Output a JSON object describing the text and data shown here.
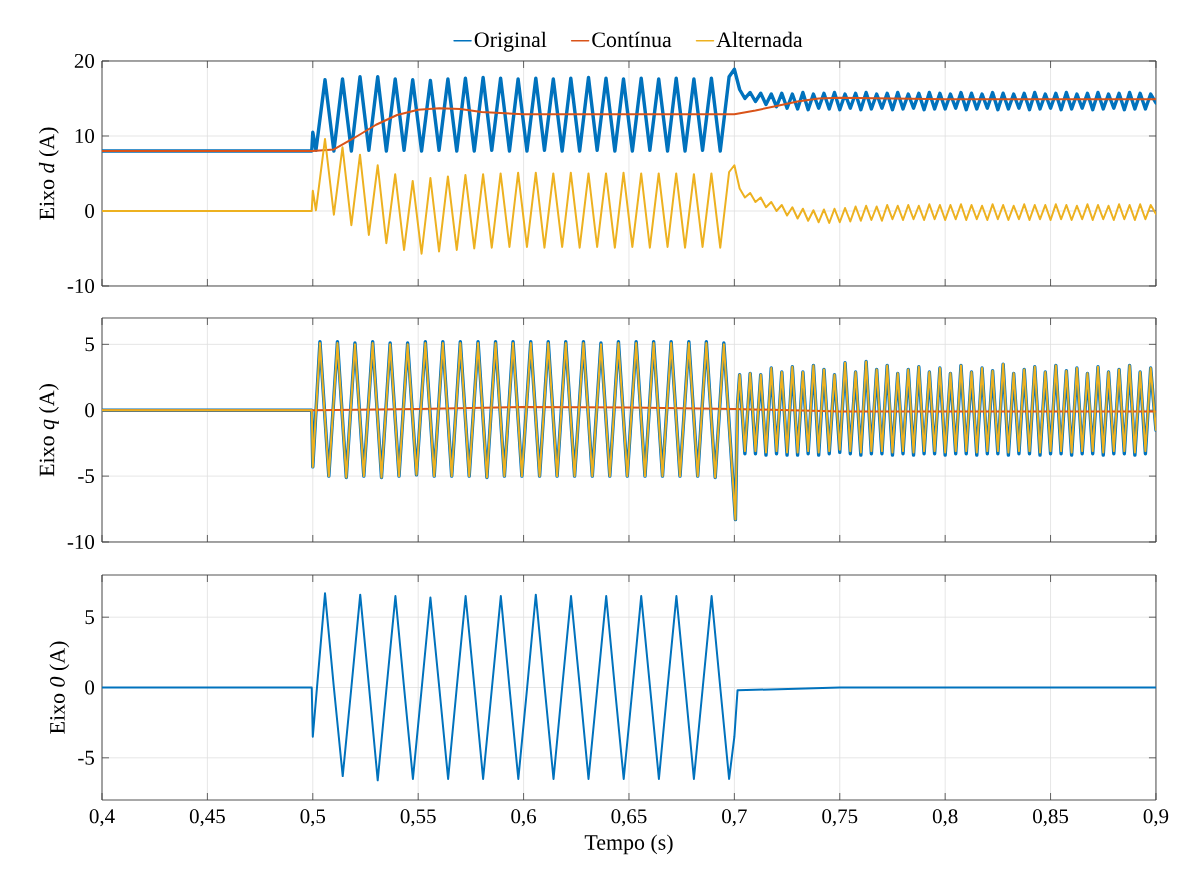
{
  "chart_data": [
    {
      "type": "line",
      "ylabel": "Eixo *d* (A)",
      "legend": "top",
      "grid": true,
      "tick_labels": "y",
      "xlim": [
        0.4,
        0.9
      ],
      "ylim": [
        -10,
        20
      ],
      "yticks": [
        -10,
        0,
        10,
        20
      ],
      "xticks": [
        {
          "value": 0.4,
          "label": null
        },
        {
          "value": 0.45,
          "label": null
        },
        {
          "value": 0.5,
          "label": null
        },
        {
          "value": 0.55,
          "label": null
        },
        {
          "value": 0.6,
          "label": null
        },
        {
          "value": 0.65,
          "label": null
        },
        {
          "value": 0.7,
          "label": null
        },
        {
          "value": 0.75,
          "label": null
        },
        {
          "value": 0.8,
          "label": null
        },
        {
          "value": 0.85,
          "label": null
        },
        {
          "value": 0.9,
          "label": null
        }
      ],
      "x": [
        0.4,
        0.4995,
        0.5,
        0.5015,
        0.5058,
        0.51,
        0.5141,
        0.5183,
        0.5224,
        0.5266,
        0.5308,
        0.5349,
        0.5391,
        0.5433,
        0.5474,
        0.5516,
        0.5558,
        0.5599,
        0.5641,
        0.5683,
        0.5724,
        0.5766,
        0.5808,
        0.5849,
        0.5891,
        0.5933,
        0.5974,
        0.6016,
        0.6058,
        0.6099,
        0.6141,
        0.6183,
        0.6224,
        0.6266,
        0.6308,
        0.6349,
        0.6391,
        0.6433,
        0.6474,
        0.6516,
        0.6558,
        0.6599,
        0.6641,
        0.6683,
        0.6724,
        0.6766,
        0.6808,
        0.6849,
        0.6891,
        0.6933,
        0.6975,
        0.7,
        0.7025,
        0.705,
        0.7075,
        0.71,
        0.7125,
        0.715,
        0.7175,
        0.72,
        0.7225,
        0.725,
        0.7275,
        0.73,
        0.7325,
        0.735,
        0.7375,
        0.74,
        0.7425,
        0.745,
        0.7475,
        0.75,
        0.7525,
        0.755,
        0.7575,
        0.76,
        0.7625,
        0.765,
        0.7675,
        0.77,
        0.7725,
        0.775,
        0.7775,
        0.78,
        0.7825,
        0.785,
        0.7875,
        0.79,
        0.7925,
        0.795,
        0.7975,
        0.8,
        0.8025,
        0.805,
        0.8075,
        0.81,
        0.8125,
        0.815,
        0.8175,
        0.82,
        0.8225,
        0.825,
        0.8275,
        0.83,
        0.8325,
        0.835,
        0.8375,
        0.84,
        0.8425,
        0.845,
        0.8475,
        0.85,
        0.8525,
        0.855,
        0.8575,
        0.86,
        0.8625,
        0.865,
        0.8675,
        0.87,
        0.8725,
        0.875,
        0.8775,
        0.88,
        0.8825,
        0.885,
        0.8875,
        0.89,
        0.8925,
        0.895,
        0.8975,
        0.9
      ],
      "series": [
        {
          "name": "Original",
          "color": "#0072bd",
          "values": [
            8,
            8,
            10.5,
            8.1,
            17.5,
            8.0,
            17.6,
            8.0,
            17.9,
            8.1,
            17.9,
            8.0,
            17.6,
            8.1,
            17.5,
            8.0,
            17.4,
            8.1,
            17.6,
            8.0,
            17.7,
            8.0,
            17.8,
            8.1,
            17.7,
            8.0,
            17.6,
            8.0,
            17.7,
            8.1,
            17.6,
            8.0,
            17.7,
            8.0,
            17.8,
            8.1,
            17.7,
            8.0,
            17.6,
            8.0,
            17.7,
            8.1,
            17.6,
            8.0,
            17.7,
            8.0,
            17.6,
            8.1,
            17.7,
            8.0,
            17.9,
            18.9,
            16.2,
            15.0,
            15.8,
            14.6,
            15.7,
            14.2,
            15.6,
            13.9,
            15.7,
            13.7,
            15.6,
            13.6,
            15.8,
            13.5,
            15.6,
            13.7,
            15.7,
            13.6,
            15.8,
            13.5,
            15.6,
            13.7,
            15.7,
            13.5,
            15.8,
            13.6,
            15.6,
            13.7,
            15.7,
            13.5,
            15.8,
            13.6,
            15.6,
            13.7,
            15.7,
            13.5,
            15.8,
            13.6,
            15.7,
            13.6,
            15.6,
            13.7,
            15.8,
            13.5,
            15.7,
            13.6,
            15.6,
            13.7,
            15.8,
            13.5,
            15.7,
            13.6,
            15.6,
            13.7,
            15.7,
            13.5,
            15.8,
            13.6,
            15.6,
            13.7,
            15.7,
            13.5,
            15.8,
            13.6,
            15.6,
            13.7,
            15.7,
            13.5,
            15.8,
            13.6,
            15.6,
            13.7,
            15.7,
            13.5,
            15.8,
            13.6,
            15.7,
            13.6,
            15.6,
            14.4
          ]
        },
        {
          "name": "Contínua",
          "color": "#d95319",
          "x": [
            0.4,
            0.5,
            0.51,
            0.52,
            0.53,
            0.54,
            0.55,
            0.56,
            0.57,
            0.58,
            0.6,
            0.65,
            0.7,
            0.71,
            0.72,
            0.73,
            0.74,
            0.75,
            0.8,
            0.85,
            0.9
          ],
          "values": [
            8,
            8,
            8.2,
            9.8,
            11.5,
            12.8,
            13.5,
            13.7,
            13.6,
            13.2,
            12.9,
            12.9,
            12.9,
            13.4,
            14.0,
            14.6,
            15.0,
            15.1,
            14.9,
            14.9,
            14.9
          ]
        },
        {
          "name": "Alternada",
          "color": "#edb120",
          "values": [
            0,
            0,
            2.7,
            0.1,
            9.6,
            -0.5,
            8.5,
            -1.9,
            7.5,
            -3.2,
            6.1,
            -4.3,
            4.9,
            -5.2,
            4.0,
            -5.7,
            4.4,
            -5.4,
            4.6,
            -5.2,
            4.8,
            -5.0,
            4.9,
            -4.9,
            5.0,
            -4.8,
            5.1,
            -4.8,
            5.1,
            -4.9,
            5.0,
            -4.8,
            5.1,
            -4.9,
            5.0,
            -4.8,
            5.0,
            -4.9,
            5.1,
            -4.8,
            5.0,
            -4.9,
            5.0,
            -4.8,
            5.0,
            -4.9,
            4.9,
            -4.8,
            5.0,
            -4.9,
            5.2,
            6.1,
            3.0,
            1.8,
            2.4,
            1.2,
            1.8,
            0.5,
            1.2,
            0.0,
            0.8,
            -0.6,
            0.5,
            -1.0,
            0.3,
            -1.3,
            0.1,
            -1.5,
            0.2,
            -1.6,
            0.3,
            -1.5,
            0.4,
            -1.4,
            0.6,
            -1.3,
            0.7,
            -1.2,
            0.6,
            -1.3,
            0.8,
            -1.1,
            0.7,
            -1.2,
            0.8,
            -1.1,
            0.7,
            -1.2,
            0.9,
            -1.1,
            0.8,
            -1.2,
            0.8,
            -1.1,
            0.9,
            -1.2,
            0.8,
            -1.1,
            0.7,
            -1.2,
            0.9,
            -1.1,
            0.8,
            -1.2,
            0.7,
            -1.1,
            0.9,
            -1.2,
            0.8,
            -1.1,
            0.8,
            -1.2,
            0.9,
            -1.1,
            0.8,
            -1.2,
            0.7,
            -1.1,
            0.9,
            -1.2,
            0.8,
            -1.1,
            0.7,
            -1.2,
            0.9,
            -1.1,
            0.8,
            -1.2,
            0.9,
            -1.1,
            0.8,
            -0.4
          ]
        }
      ]
    },
    {
      "type": "line",
      "ylabel": "Eixo *q* (A)",
      "grid": true,
      "tick_labels": "y",
      "xlim": [
        0.4,
        0.9
      ],
      "ylim": [
        -10,
        7
      ],
      "yticks": [
        -10,
        -5,
        0,
        5
      ],
      "xticks": [
        {
          "value": 0.4,
          "label": null
        },
        {
          "value": 0.45,
          "label": null
        },
        {
          "value": 0.5,
          "label": null
        },
        {
          "value": 0.55,
          "label": null
        },
        {
          "value": 0.6,
          "label": null
        },
        {
          "value": 0.65,
          "label": null
        },
        {
          "value": 0.7,
          "label": null
        },
        {
          "value": 0.75,
          "label": null
        },
        {
          "value": 0.8,
          "label": null
        },
        {
          "value": 0.85,
          "label": null
        },
        {
          "value": 0.9,
          "label": null
        }
      ],
      "x": [
        0.4,
        0.4995,
        0.5,
        0.5034,
        0.5076,
        0.5117,
        0.5159,
        0.52,
        0.5242,
        0.5284,
        0.5326,
        0.5367,
        0.5409,
        0.545,
        0.5492,
        0.5534,
        0.5576,
        0.5617,
        0.5659,
        0.57,
        0.5742,
        0.5784,
        0.5826,
        0.5867,
        0.5909,
        0.595,
        0.5992,
        0.6034,
        0.6076,
        0.6117,
        0.6159,
        0.62,
        0.6242,
        0.6284,
        0.6326,
        0.6367,
        0.6409,
        0.645,
        0.6492,
        0.6534,
        0.6576,
        0.6617,
        0.6659,
        0.67,
        0.6742,
        0.6784,
        0.6826,
        0.6867,
        0.6909,
        0.695,
        0.7005,
        0.7015,
        0.7025,
        0.705,
        0.7075,
        0.71,
        0.7125,
        0.715,
        0.7175,
        0.72,
        0.7225,
        0.725,
        0.7275,
        0.73,
        0.7325,
        0.735,
        0.7375,
        0.74,
        0.7425,
        0.745,
        0.7475,
        0.75,
        0.7525,
        0.755,
        0.7575,
        0.76,
        0.7625,
        0.765,
        0.7675,
        0.77,
        0.7725,
        0.775,
        0.7775,
        0.78,
        0.7825,
        0.785,
        0.7875,
        0.79,
        0.7925,
        0.795,
        0.7975,
        0.8,
        0.8025,
        0.805,
        0.8075,
        0.81,
        0.8125,
        0.815,
        0.8175,
        0.82,
        0.8225,
        0.825,
        0.8275,
        0.83,
        0.8325,
        0.835,
        0.8375,
        0.84,
        0.8425,
        0.845,
        0.8475,
        0.85,
        0.8525,
        0.855,
        0.8575,
        0.86,
        0.8625,
        0.865,
        0.8675,
        0.87,
        0.8725,
        0.875,
        0.8775,
        0.88,
        0.8825,
        0.885,
        0.8875,
        0.89,
        0.8925,
        0.895,
        0.8975,
        0.9
      ],
      "series": [
        {
          "color": "#0072bd",
          "values": [
            0,
            0,
            -4.3,
            5.2,
            -5.0,
            5.2,
            -5.1,
            5.1,
            -5.0,
            5.2,
            -5.1,
            5.1,
            -5.0,
            5.1,
            -4.9,
            5.2,
            -5.0,
            5.2,
            -5.0,
            5.2,
            -5.0,
            5.2,
            -5.1,
            5.2,
            -5.0,
            5.2,
            -5.0,
            5.2,
            -5.0,
            5.2,
            -5.0,
            5.2,
            -5.0,
            5.2,
            -5.0,
            5.1,
            -5.0,
            5.2,
            -5.0,
            5.2,
            -5.0,
            5.2,
            -5.0,
            5.2,
            -5.0,
            5.2,
            -5.0,
            5.2,
            -5.1,
            5.1,
            -8.3,
            0.4,
            2.7,
            -3.3,
            2.8,
            -3.3,
            2.7,
            -3.4,
            3.2,
            -3.3,
            2.9,
            -3.4,
            3.3,
            -3.4,
            2.9,
            -3.3,
            3.4,
            -3.4,
            3.1,
            -3.3,
            2.7,
            -3.2,
            3.6,
            -3.3,
            2.9,
            -3.4,
            3.7,
            -3.3,
            3.1,
            -3.3,
            3.4,
            -3.4,
            2.8,
            -3.3,
            3.1,
            -3.4,
            3.3,
            -3.3,
            2.9,
            -3.3,
            3.2,
            -3.4,
            2.8,
            -3.3,
            3.4,
            -3.3,
            2.9,
            -3.4,
            3.2,
            -3.3,
            3.0,
            -3.3,
            3.5,
            -3.4,
            2.8,
            -3.3,
            3.1,
            -3.3,
            3.3,
            -3.4,
            2.9,
            -3.3,
            3.4,
            -3.3,
            3.0,
            -3.4,
            3.2,
            -3.3,
            2.8,
            -3.3,
            3.3,
            -3.4,
            2.9,
            -3.3,
            3.1,
            -3.3,
            3.4,
            -3.4,
            2.9,
            -3.3,
            3.2,
            -1.5
          ]
        },
        {
          "color": "#d95319",
          "x": [
            0.4,
            0.5,
            0.55,
            0.6,
            0.65,
            0.7,
            0.75,
            0.8,
            0.9
          ],
          "values": [
            0,
            0,
            0.1,
            0.25,
            0.2,
            0.1,
            -0.1,
            -0.1,
            -0.1
          ]
        },
        {
          "color": "#edb120",
          "values": [
            0,
            0,
            -4.3,
            5.1,
            -5.0,
            5.1,
            -5.1,
            5.0,
            -5.0,
            5.1,
            -5.1,
            5.0,
            -5.0,
            5.0,
            -4.9,
            5.1,
            -5.0,
            5.1,
            -5.0,
            5.1,
            -5.0,
            5.1,
            -5.1,
            5.1,
            -5.0,
            5.1,
            -5.0,
            5.1,
            -5.0,
            5.1,
            -5.0,
            5.1,
            -5.0,
            5.1,
            -5.0,
            5.0,
            -5.0,
            5.1,
            -5.0,
            5.1,
            -5.0,
            5.1,
            -5.0,
            5.1,
            -5.0,
            5.1,
            -5.0,
            5.1,
            -5.1,
            5.0,
            -8.3,
            0.4,
            2.7,
            -3.1,
            2.8,
            -3.1,
            2.7,
            -3.2,
            3.2,
            -3.1,
            2.9,
            -3.2,
            3.3,
            -3.2,
            2.9,
            -3.1,
            3.4,
            -3.2,
            3.1,
            -3.1,
            2.7,
            -3.0,
            3.6,
            -3.1,
            2.9,
            -3.2,
            3.7,
            -3.1,
            3.1,
            -3.1,
            3.4,
            -3.2,
            2.8,
            -3.1,
            3.1,
            -3.2,
            3.3,
            -3.1,
            2.9,
            -3.1,
            3.2,
            -3.2,
            2.8,
            -3.1,
            3.4,
            -3.1,
            2.9,
            -3.2,
            3.2,
            -3.1,
            3.0,
            -3.1,
            3.5,
            -3.2,
            2.8,
            -3.1,
            3.1,
            -3.1,
            3.3,
            -3.2,
            2.9,
            -3.1,
            3.4,
            -3.1,
            3.0,
            -3.2,
            3.2,
            -3.1,
            2.8,
            -3.1,
            3.3,
            -3.2,
            2.9,
            -3.1,
            3.1,
            -3.1,
            3.4,
            -3.2,
            2.9,
            -3.1,
            3.2,
            -1.5
          ]
        }
      ]
    },
    {
      "type": "line",
      "xlabel": "Tempo (s)",
      "ylabel": "Eixo *0* (A)",
      "grid": true,
      "xlim": [
        0.4,
        0.9
      ],
      "ylim": [
        -8,
        8
      ],
      "yticks": [
        -5,
        0,
        5
      ],
      "xticks": [
        {
          "value": 0.4,
          "label": "0,4"
        },
        {
          "value": 0.45,
          "label": "0,45"
        },
        {
          "value": 0.5,
          "label": "0,5"
        },
        {
          "value": 0.55,
          "label": "0,55"
        },
        {
          "value": 0.6,
          "label": "0,6"
        },
        {
          "value": 0.65,
          "label": "0,65"
        },
        {
          "value": 0.7,
          "label": "0,7"
        },
        {
          "value": 0.75,
          "label": "0,75"
        },
        {
          "value": 0.8,
          "label": "0,8"
        },
        {
          "value": 0.85,
          "label": "0,85"
        },
        {
          "value": 0.9,
          "label": "0,9"
        }
      ],
      "x": [
        0.4,
        0.45,
        0.4995,
        0.5,
        0.5058,
        0.51,
        0.5142,
        0.5183,
        0.5225,
        0.5267,
        0.5308,
        0.535,
        0.5392,
        0.5433,
        0.5475,
        0.5517,
        0.5558,
        0.56,
        0.5642,
        0.5683,
        0.5725,
        0.5767,
        0.5808,
        0.585,
        0.5892,
        0.5933,
        0.5975,
        0.6017,
        0.6058,
        0.61,
        0.6142,
        0.6183,
        0.6225,
        0.6267,
        0.6308,
        0.635,
        0.6392,
        0.6433,
        0.6475,
        0.6517,
        0.6558,
        0.66,
        0.6642,
        0.6683,
        0.6725,
        0.6767,
        0.6808,
        0.685,
        0.6892,
        0.6933,
        0.6975,
        0.7,
        0.7015,
        0.75,
        0.8,
        0.85,
        0.9
      ],
      "series": [
        {
          "color": "#0072bd",
          "values": [
            0,
            0,
            0,
            -3.5,
            6.7,
            0,
            -6.3,
            0,
            6.6,
            0,
            -6.6,
            0,
            6.5,
            0,
            -6.5,
            0,
            6.4,
            0,
            -6.5,
            0,
            6.5,
            0,
            -6.5,
            0,
            6.5,
            0,
            -6.5,
            0,
            6.6,
            0,
            -6.5,
            0,
            6.5,
            0,
            -6.5,
            0,
            6.5,
            0,
            -6.5,
            0,
            6.5,
            0,
            -6.5,
            0,
            6.5,
            0,
            -6.5,
            0,
            6.5,
            0,
            -6.5,
            -3.5,
            -0.2,
            0,
            0,
            0,
            0
          ]
        }
      ]
    }
  ]
}
